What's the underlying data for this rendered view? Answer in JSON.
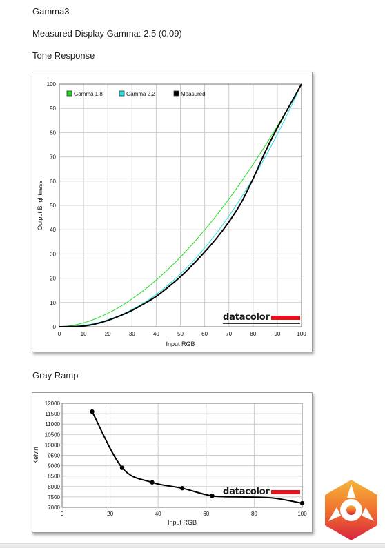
{
  "title": "Gamma3",
  "measured_gamma": "Measured Display Gamma: 2.5 (0.09)",
  "section_tone": "Tone Response",
  "section_gray": "Gray Ramp",
  "logo": {
    "text": "datacolor",
    "bar_color": "#e3141e"
  },
  "watermark_icon": "kitguru-logo-icon",
  "chart_data": [
    {
      "type": "line",
      "xlabel": "Input RGB",
      "ylabel": "Output Brightness",
      "xlim": [
        0,
        100
      ],
      "ylim": [
        0,
        100
      ],
      "xticks": [
        0,
        10,
        20,
        30,
        40,
        50,
        60,
        70,
        80,
        90,
        100
      ],
      "yticks": [
        0,
        10,
        20,
        30,
        40,
        50,
        60,
        70,
        80,
        90,
        100
      ],
      "grid": true,
      "legend_position": "top-left",
      "x": [
        0,
        5,
        10,
        15,
        20,
        25,
        30,
        35,
        40,
        45,
        50,
        55,
        60,
        65,
        70,
        75,
        80,
        85,
        90,
        95,
        100
      ],
      "series": [
        {
          "name": "Gamma 1.8",
          "color": "#22dd22",
          "values": [
            0,
            0.5,
            1.6,
            3.3,
            5.5,
            8.2,
            11.5,
            15.1,
            19.2,
            23.8,
            28.7,
            34.1,
            39.9,
            46.0,
            52.6,
            59.6,
            66.9,
            74.6,
            82.7,
            91.2,
            100
          ]
        },
        {
          "name": "Gamma 2.2",
          "color": "#22dddd",
          "values": [
            0,
            0.1,
            0.6,
            1.5,
            2.9,
            4.7,
            7.1,
            9.9,
            13.3,
            17.3,
            21.8,
            26.8,
            32.5,
            38.7,
            45.6,
            53.1,
            61.2,
            69.9,
            79.3,
            89.3,
            100
          ]
        },
        {
          "name": "Measured",
          "color": "#000000",
          "values": [
            0,
            0.1,
            0.3,
            1.2,
            2.6,
            4.5,
            6.7,
            9.5,
            12.5,
            16.4,
            20.6,
            25.5,
            30.8,
            36.6,
            43.2,
            51.0,
            61.0,
            72.0,
            82.0,
            91.0,
            100
          ]
        }
      ]
    },
    {
      "type": "line",
      "xlabel": "Input RGB",
      "ylabel": "Kelvin",
      "xlim": [
        0,
        100
      ],
      "ylim": [
        7000,
        12000
      ],
      "xticks": [
        0,
        20,
        40,
        60,
        80,
        100
      ],
      "yticks": [
        7000,
        7500,
        8000,
        8500,
        9000,
        9500,
        10000,
        10500,
        11000,
        11500,
        12000
      ],
      "grid": true,
      "series": [
        {
          "color": "#000000",
          "x": [
            12.5,
            25,
            37.5,
            50,
            62.5,
            75,
            87.5,
            100
          ],
          "values": [
            11600,
            8900,
            8200,
            7920,
            7550,
            7500,
            7450,
            7200
          ]
        }
      ]
    }
  ]
}
